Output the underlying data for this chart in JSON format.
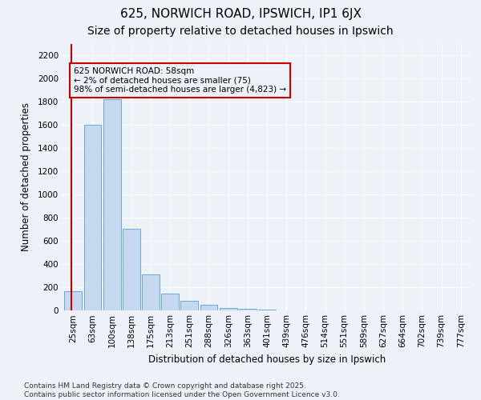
{
  "title": "625, NORWICH ROAD, IPSWICH, IP1 6JX",
  "subtitle": "Size of property relative to detached houses in Ipswich",
  "xlabel": "Distribution of detached houses by size in Ipswich",
  "ylabel": "Number of detached properties",
  "categories": [
    "25sqm",
    "63sqm",
    "100sqm",
    "138sqm",
    "175sqm",
    "213sqm",
    "251sqm",
    "288sqm",
    "326sqm",
    "363sqm",
    "401sqm",
    "439sqm",
    "476sqm",
    "514sqm",
    "551sqm",
    "589sqm",
    "627sqm",
    "664sqm",
    "702sqm",
    "739sqm",
    "777sqm"
  ],
  "values": [
    160,
    1600,
    1820,
    700,
    310,
    140,
    80,
    45,
    20,
    10,
    5,
    0,
    0,
    0,
    0,
    0,
    0,
    0,
    0,
    0,
    0
  ],
  "bar_color": "#c5d8f0",
  "bar_edge_color": "#6aaad4",
  "annotation_text": "625 NORWICH ROAD: 58sqm\n← 2% of detached houses are smaller (75)\n98% of semi-detached houses are larger (4,823) →",
  "annotation_box_color": "#cc0000",
  "annotation_text_color": "#000000",
  "vline_color": "#cc0000",
  "vline_x": -0.08,
  "background_color": "#edf1f8",
  "ylim": [
    0,
    2300
  ],
  "yticks": [
    0,
    200,
    400,
    600,
    800,
    1000,
    1200,
    1400,
    1600,
    1800,
    2000,
    2200
  ],
  "footer": "Contains HM Land Registry data © Crown copyright and database right 2025.\nContains public sector information licensed under the Open Government Licence v3.0.",
  "title_fontsize": 11,
  "subtitle_fontsize": 10,
  "axis_label_fontsize": 8.5,
  "tick_fontsize": 7.5,
  "annotation_fontsize": 7.5,
  "footer_fontsize": 6.5
}
